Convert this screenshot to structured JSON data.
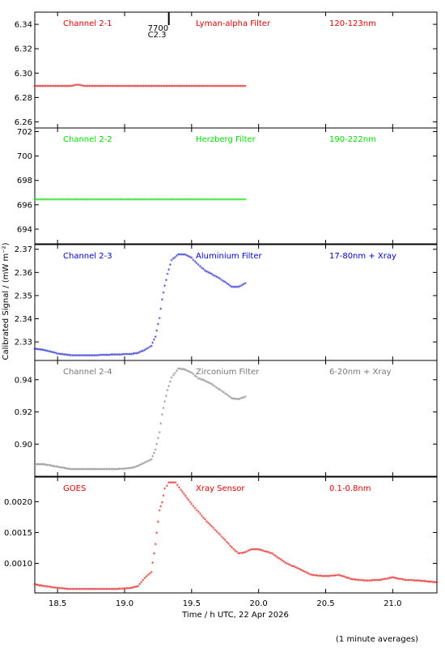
{
  "chart_data": {
    "type": "scatter",
    "x_axis": {
      "label": "Time / h UTC, 22 Apr 2026",
      "range": [
        18.33,
        21.33
      ],
      "ticks": [
        18.5,
        19.0,
        19.5,
        20.0,
        20.5,
        21.0
      ],
      "tick_labels": [
        "18.5",
        "19.0",
        "19.5",
        "20.0",
        "20.5",
        "21.0"
      ]
    },
    "y_axis_label": "Calibrated Signal / (mW m⁻²)",
    "footnote": "(1 minute averages)",
    "marker": {
      "label_top": "7700",
      "label_bottom": "C2.3",
      "x": 19.33
    },
    "panels": [
      {
        "channel": "Channel 2-1",
        "filter": "Lyman-alpha Filter",
        "band": "120-123nm",
        "color": "#dd0000",
        "ylim": [
          6.255,
          6.35
        ],
        "ticks": [
          6.26,
          6.28,
          6.3,
          6.32,
          6.34
        ],
        "tick_labels": [
          "6.26",
          "6.28",
          "6.30",
          "6.32",
          "6.34"
        ],
        "series": [
          [
            18.33,
            6.289
          ],
          [
            18.6,
            6.289
          ],
          [
            18.65,
            6.29
          ],
          [
            18.7,
            6.289
          ],
          [
            19.0,
            6.289
          ],
          [
            19.5,
            6.289
          ],
          [
            19.9,
            6.289
          ]
        ]
      },
      {
        "channel": "Channel 2-2",
        "filter": "Herzberg Filter",
        "band": "190-222nm",
        "color": "#00dd00",
        "ylim": [
          692.8,
          702.3
        ],
        "ticks": [
          694,
          696,
          698,
          700,
          702
        ],
        "tick_labels": [
          "694",
          "696",
          "698",
          "700",
          "702"
        ],
        "series": [
          [
            18.33,
            696.4
          ],
          [
            19.0,
            696.4
          ],
          [
            19.5,
            696.4
          ],
          [
            19.9,
            696.4
          ]
        ]
      },
      {
        "channel": "Channel 2-3",
        "filter": "Aluminium Filter",
        "band": "17-80nm + Xray",
        "color": "#0000cc",
        "ylim": [
          2.322,
          2.372
        ],
        "ticks": [
          2.33,
          2.34,
          2.35,
          2.36,
          2.37
        ],
        "tick_labels": [
          "2.33",
          "2.34",
          "2.35",
          "2.36",
          "2.37"
        ],
        "series": [
          [
            18.33,
            2.3268
          ],
          [
            18.4,
            2.3262
          ],
          [
            18.5,
            2.3247
          ],
          [
            18.6,
            2.324
          ],
          [
            18.7,
            2.324
          ],
          [
            18.8,
            2.324
          ],
          [
            18.9,
            2.3242
          ],
          [
            19.0,
            2.3244
          ],
          [
            19.05,
            2.3245
          ],
          [
            19.1,
            2.325
          ],
          [
            19.15,
            2.3262
          ],
          [
            19.2,
            2.328
          ],
          [
            19.23,
            2.332
          ],
          [
            19.26,
            2.34
          ],
          [
            19.28,
            2.348
          ],
          [
            19.3,
            2.354
          ],
          [
            19.32,
            2.359
          ],
          [
            19.35,
            2.365
          ],
          [
            19.4,
            2.3675
          ],
          [
            19.45,
            2.3675
          ],
          [
            19.5,
            2.366
          ],
          [
            19.55,
            2.363
          ],
          [
            19.6,
            2.3605
          ],
          [
            19.65,
            2.359
          ],
          [
            19.7,
            2.3575
          ],
          [
            19.75,
            2.3555
          ],
          [
            19.8,
            2.3535
          ],
          [
            19.85,
            2.3535
          ],
          [
            19.9,
            2.355
          ]
        ]
      },
      {
        "channel": "Channel 2-4",
        "filter": "Zirconium Filter",
        "band": "6-20nm + Xray",
        "color": "#777777",
        "ylim": [
          0.88,
          0.952
        ],
        "ticks": [
          0.9,
          0.92,
          0.94
        ],
        "tick_labels": [
          "0.90",
          "0.92",
          "0.94"
        ],
        "series": [
          [
            18.33,
            0.887
          ],
          [
            18.4,
            0.887
          ],
          [
            18.5,
            0.8855
          ],
          [
            18.6,
            0.884
          ],
          [
            18.7,
            0.884
          ],
          [
            18.8,
            0.884
          ],
          [
            18.9,
            0.884
          ],
          [
            19.0,
            0.8843
          ],
          [
            19.05,
            0.8848
          ],
          [
            19.1,
            0.886
          ],
          [
            19.15,
            0.888
          ],
          [
            19.2,
            0.89
          ],
          [
            19.23,
            0.896
          ],
          [
            19.26,
            0.907
          ],
          [
            19.28,
            0.918
          ],
          [
            19.3,
            0.926
          ],
          [
            19.32,
            0.933
          ],
          [
            19.35,
            0.941
          ],
          [
            19.4,
            0.9465
          ],
          [
            19.45,
            0.946
          ],
          [
            19.5,
            0.944
          ],
          [
            19.55,
            0.9405
          ],
          [
            19.6,
            0.939
          ],
          [
            19.65,
            0.937
          ],
          [
            19.7,
            0.934
          ],
          [
            19.75,
            0.931
          ],
          [
            19.8,
            0.928
          ],
          [
            19.85,
            0.9275
          ],
          [
            19.9,
            0.929
          ]
        ]
      },
      {
        "channel": "GOES",
        "filter": "Xray Sensor",
        "band": "0.1-0.8nm",
        "color": "#dd0000",
        "ylim": [
          0.00052,
          0.0024
        ],
        "ticks": [
          0.001,
          0.0015,
          0.002
        ],
        "tick_labels": [
          "0.0010",
          "0.0015",
          "0.0020"
        ],
        "series": [
          [
            18.33,
            0.00065
          ],
          [
            18.4,
            0.00062
          ],
          [
            18.5,
            0.00059
          ],
          [
            18.6,
            0.00057
          ],
          [
            18.7,
            0.00057
          ],
          [
            18.8,
            0.00057
          ],
          [
            18.9,
            0.00057
          ],
          [
            19.0,
            0.00058
          ],
          [
            19.05,
            0.00059
          ],
          [
            19.1,
            0.00062
          ],
          [
            19.15,
            0.00075
          ],
          [
            19.2,
            0.00085
          ],
          [
            19.23,
            0.0013
          ],
          [
            19.26,
            0.00185
          ],
          [
            19.28,
            0.00198
          ],
          [
            19.3,
            0.0022
          ],
          [
            19.33,
            0.0023
          ],
          [
            19.38,
            0.0023
          ],
          [
            19.42,
            0.00218
          ],
          [
            19.5,
            0.00195
          ],
          [
            19.6,
            0.0017
          ],
          [
            19.7,
            0.00148
          ],
          [
            19.8,
            0.00125
          ],
          [
            19.85,
            0.00115
          ],
          [
            19.9,
            0.00117
          ],
          [
            19.95,
            0.00122
          ],
          [
            20.0,
            0.00122
          ],
          [
            20.1,
            0.00115
          ],
          [
            20.2,
            0.001
          ],
          [
            20.3,
            0.0009
          ],
          [
            20.4,
            0.0008
          ],
          [
            20.5,
            0.00078
          ],
          [
            20.6,
            0.0008
          ],
          [
            20.7,
            0.00073
          ],
          [
            20.8,
            0.00071
          ],
          [
            20.9,
            0.00072
          ],
          [
            21.0,
            0.00076
          ],
          [
            21.1,
            0.00072
          ],
          [
            21.2,
            0.00071
          ],
          [
            21.33,
            0.00068
          ]
        ]
      }
    ]
  }
}
